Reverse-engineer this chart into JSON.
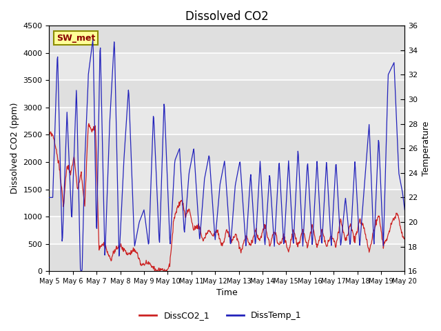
{
  "title": "Dissolved CO2",
  "xlabel": "Time",
  "ylabel_left": "Dissolved CO2 (ppm)",
  "ylabel_right": "Temperature",
  "ylim_left": [
    0,
    4500
  ],
  "ylim_right": [
    16,
    36
  ],
  "yticks_left": [
    0,
    500,
    1000,
    1500,
    2000,
    2500,
    3000,
    3500,
    4000,
    4500
  ],
  "yticks_right": [
    16,
    18,
    20,
    22,
    24,
    26,
    28,
    30,
    32,
    34,
    36
  ],
  "xtick_labels": [
    "May 5",
    "May 6",
    "May 7",
    "May 8",
    "May 9",
    "May 10",
    "May 11",
    "May 12",
    "May 13",
    "May 14",
    "May 15",
    "May 16",
    "May 17",
    "May 18",
    "May 19",
    "May 20"
  ],
  "annotation_text": "SW_met",
  "annotation_color": "#8B0000",
  "annotation_bg": "#FFFF99",
  "annotation_border": "#8B8B00",
  "line_co2_color": "#CC2222",
  "line_temp_color": "#2222BB",
  "legend_co2": "DissCO2_1",
  "legend_temp": "DissTemp_1",
  "bg_color": "#E8E8E8",
  "grid_color": "#FFFFFF",
  "title_fontsize": 12,
  "label_fontsize": 9,
  "tick_fontsize": 8
}
